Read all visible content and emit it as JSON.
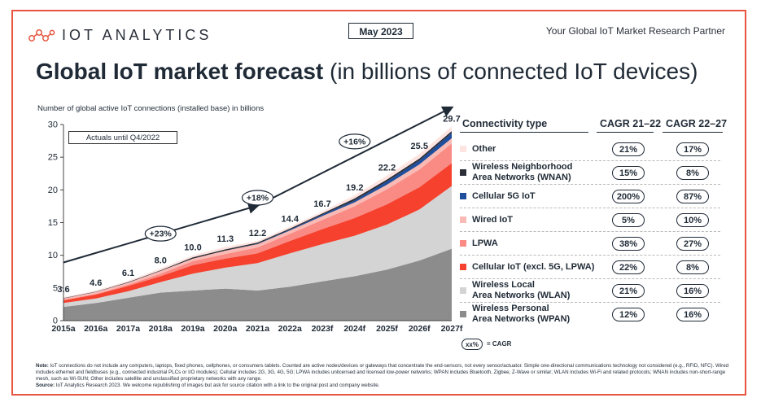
{
  "header": {
    "brand": "IOT ANALYTICS",
    "date_badge": "May 2023",
    "tagline": "Your Global IoT Market Research Partner",
    "title_bold": "Global IoT market forecast",
    "title_rest": " (in billions of connected IoT devices)"
  },
  "colors": {
    "frame": "#e8553f",
    "wpan": "#8c8c8c",
    "wlan": "#d4d4d4",
    "cellular": "#f5412e",
    "lpwa": "#f98a84",
    "wired": "#f9b9b4",
    "cellular5g": "#1f4e9c",
    "wnan": "#2c2e38",
    "other": "#fde4e1"
  },
  "chart_data": {
    "type": "area",
    "ylabel": "Number of global active IoT connections (installed base) in billions",
    "ylim": [
      0,
      30
    ],
    "yticks": [
      "0",
      "5",
      "10",
      "15",
      "20",
      "25",
      "30"
    ],
    "categories": [
      "2015a",
      "2016a",
      "2017a",
      "2018a",
      "2019a",
      "2020a",
      "2021a",
      "2022a",
      "2023f",
      "2024f",
      "2025f",
      "2026f",
      "2027f"
    ],
    "annotation_actuals": "Actuals until Q4/2022",
    "totals": [
      3.6,
      4.6,
      6.1,
      8.0,
      10.0,
      11.3,
      12.2,
      14.4,
      16.7,
      19.2,
      22.2,
      25.5,
      29.7
    ],
    "total_labels": [
      "3.6",
      "4.6",
      "6.1",
      "8.0",
      "10.0",
      "11.3",
      "12.2",
      "14.4",
      "16.7",
      "19.2",
      "22.2",
      "25.5",
      "29.7"
    ],
    "series": [
      {
        "name": "Wireless Personal Area Networks (WPAN)",
        "values": [
          2.1,
          2.7,
          3.5,
          4.3,
          4.6,
          4.9,
          4.6,
          5.2,
          6.0,
          6.8,
          7.8,
          9.2,
          11.0
        ]
      },
      {
        "name": "Wireless Local Area Networks (WLAN)",
        "values": [
          0.6,
          0.7,
          1.0,
          1.6,
          2.6,
          3.2,
          4.2,
          5.1,
          5.7,
          6.2,
          6.9,
          7.8,
          9.6
        ]
      },
      {
        "name": "Cellular IoT (excl. 5G, LPWA)",
        "values": [
          0.4,
          0.6,
          0.8,
          0.9,
          1.3,
          1.4,
          1.5,
          1.9,
          2.3,
          2.7,
          3.1,
          3.4,
          3.5
        ]
      },
      {
        "name": "LPWA",
        "values": [
          0.1,
          0.1,
          0.2,
          0.4,
          0.6,
          0.7,
          0.9,
          1.1,
          1.4,
          1.8,
          2.3,
          2.7,
          3.0
        ]
      },
      {
        "name": "Wired IoT",
        "values": [
          0.2,
          0.3,
          0.3,
          0.4,
          0.4,
          0.5,
          0.5,
          0.5,
          0.6,
          0.6,
          0.7,
          0.8,
          0.8
        ]
      },
      {
        "name": "Cellular 5G IoT",
        "values": [
          0.0,
          0.0,
          0.0,
          0.0,
          0.0,
          0.0,
          0.05,
          0.1,
          0.2,
          0.3,
          0.5,
          0.6,
          0.8
        ]
      },
      {
        "name": "Wireless Neighborhood Area Networks (WNAN)",
        "values": [
          0.05,
          0.05,
          0.1,
          0.1,
          0.2,
          0.2,
          0.2,
          0.2,
          0.2,
          0.3,
          0.3,
          0.3,
          0.3
        ]
      },
      {
        "name": "Other",
        "values": [
          0.15,
          0.15,
          0.2,
          0.3,
          0.3,
          0.4,
          0.25,
          0.3,
          0.3,
          0.5,
          0.6,
          0.7,
          0.7
        ]
      }
    ],
    "trend_arrows": [
      {
        "from": "2015a",
        "to": "2021a",
        "from_value": 8.9,
        "to_value": 17.6,
        "label": "+23%"
      },
      {
        "from": "2021a",
        "to": "2027f",
        "from_value": 17.6,
        "to_value": 32.6,
        "label": "+18%"
      }
    ],
    "arrow_labels": [
      {
        "label": "+23%",
        "category": "2018a",
        "value": 13.3
      },
      {
        "label": "+18%",
        "category": "2021a",
        "value": 18.8
      },
      {
        "label": "+16%",
        "category": "2024f",
        "value": 27.4
      }
    ]
  },
  "legend": {
    "header_type": "Connectivity type",
    "header_cagr1": "CAGR 21–22",
    "header_cagr2": "CAGR 22–27",
    "rows": [
      {
        "label1": "Other",
        "label2": "",
        "color": "#fde4e1",
        "cagr1": "21%",
        "cagr2": "17%"
      },
      {
        "label1": "Wireless Neighborhood",
        "label2": "Area Networks (WNAN)",
        "color": "#2c2e38",
        "cagr1": "15%",
        "cagr2": "8%"
      },
      {
        "label1": "Cellular 5G IoT",
        "label2": "",
        "color": "#1f4e9c",
        "cagr1": "200%",
        "cagr2": "87%"
      },
      {
        "label1": "Wired IoT",
        "label2": "",
        "color": "#f9b9b4",
        "cagr1": "5%",
        "cagr2": "10%"
      },
      {
        "label1": "LPWA",
        "label2": "",
        "color": "#f98a84",
        "cagr1": "38%",
        "cagr2": "27%"
      },
      {
        "label1": "Cellular IoT (excl. 5G, LPWA)",
        "label2": "",
        "color": "#f5412e",
        "cagr1": "22%",
        "cagr2": "8%"
      },
      {
        "label1": "Wireless Local",
        "label2": "Area Networks (WLAN)",
        "color": "#d4d4d4",
        "cagr1": "21%",
        "cagr2": "16%"
      },
      {
        "label1": "Wireless Personal",
        "label2": "Area Networks (WPAN)",
        "color": "#8c8c8c",
        "cagr1": "12%",
        "cagr2": "16%"
      }
    ],
    "key_pill": "xx%",
    "key_label": "= CAGR"
  },
  "footnote": {
    "note_label": "Note:",
    "note_text": " IoT connections do not include any computers, laptops, fixed phones, cellphones, or consumers tablets. Counted are active nodes/devices or gateways that concentrate the end-sensors, not every sensor/actuator. Simple one-directional communications technology not considered (e.g., RFID, NFC). Wired includes ethernet and fieldbuses (e.g., connected industrial PLCs or I/O modules); Cellular includes 2G, 3G, 4G, 5G; LPWA includes unlicensed and licensed low-power networks; WPAN includes Bluetooth, Zigbee, Z-Wave or similar; WLAN includes Wi-Fi and related protocols; WNAN includes non-short-range mesh, such as Wi-SUN; Other includes satellite and unclassified proprietary networks with any range.",
    "source_label": "Source:",
    "source_text": " IoT Analytics Research 2023. We welcome republishing of images but ask for source citation with a link to the original post and company website."
  }
}
